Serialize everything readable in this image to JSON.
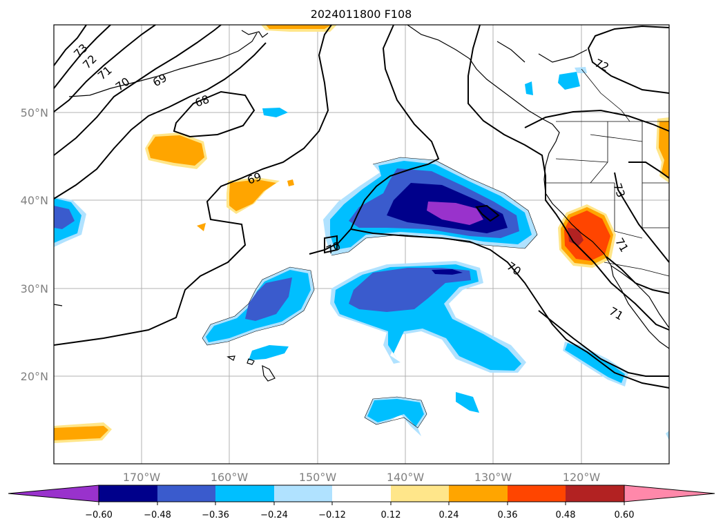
{
  "title": "2024011800 F108",
  "axes": {
    "lat_labels": [
      "50°N",
      "40°N",
      "30°N",
      "20°N"
    ],
    "lon_labels": [
      "170°W",
      "160°W",
      "150°W",
      "140°W",
      "130°W",
      "120°W"
    ]
  },
  "contour_labels": [
    "73",
    "72",
    "71",
    "70",
    "69",
    "68",
    "69",
    "70",
    "70",
    "71",
    "72",
    "73",
    "71"
  ],
  "colorbar": {
    "tick_labels": [
      "−0.60",
      "−0.48",
      "−0.36",
      "−0.24",
      "−0.12",
      "0.12",
      "0.24",
      "0.36",
      "0.48",
      "0.60"
    ],
    "colors": [
      "#9932cc",
      "#00008b",
      "#3a5bcd",
      "#00bfff",
      "#b0e2ff",
      "#ffffff",
      "#ffe68a",
      "#ffa500",
      "#ff4500",
      "#b22222",
      "#ff88aa"
    ]
  },
  "colors": {
    "purple": "#9932cc",
    "navy": "#00008b",
    "royal": "#3a5bcd",
    "sky": "#00bfff",
    "pale_blue": "#b0e2ff",
    "pale_yellow": "#ffe68a",
    "orange": "#ffa500",
    "red_orange": "#ff4500",
    "firebrick": "#b22222",
    "pink": "#ff88aa"
  }
}
